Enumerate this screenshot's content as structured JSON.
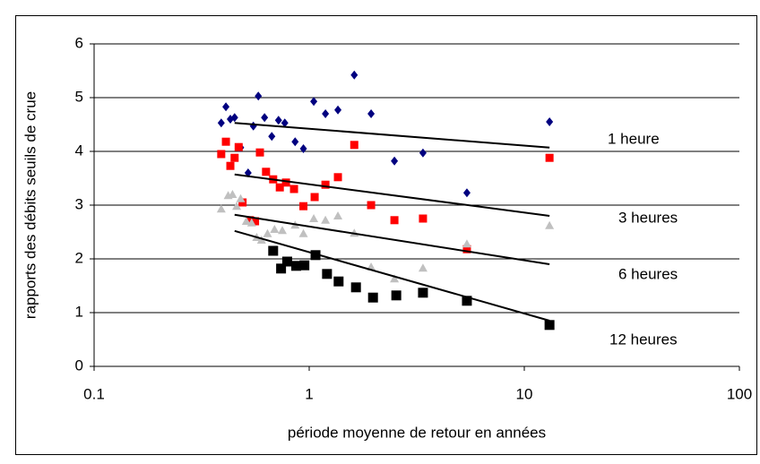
{
  "chart_data": {
    "type": "scatter",
    "x_label": "période moyenne de retour en années",
    "y_label": "rapports des débits seuils de crue",
    "xlim": [
      0.1,
      100
    ],
    "xticks": [
      0.1,
      1,
      10,
      100
    ],
    "xlog": true,
    "ylim": [
      0,
      6
    ],
    "yticks": [
      0,
      1,
      2,
      3,
      4,
      5,
      6
    ],
    "grid": true,
    "series": [
      {
        "marker": "diamond",
        "color": "#000080",
        "x": [
          0.39,
          0.41,
          0.43,
          0.45,
          0.47,
          0.48,
          0.52,
          0.55,
          0.58,
          0.62,
          0.67,
          0.72,
          0.77,
          0.86,
          0.94,
          1.05,
          1.19,
          1.36,
          1.62,
          1.94,
          2.49,
          3.38,
          5.41,
          13.1
        ],
        "values": [
          4.53,
          4.83,
          4.6,
          4.63,
          4.07,
          4.07,
          3.6,
          4.47,
          5.03,
          4.63,
          4.28,
          4.58,
          4.53,
          4.18,
          4.05,
          4.93,
          4.7,
          4.77,
          5.42,
          4.7,
          3.82,
          3.97,
          3.23,
          4.55
        ]
      },
      {
        "marker": "square",
        "color": "#ff0000",
        "x": [
          0.39,
          0.41,
          0.43,
          0.45,
          0.47,
          0.49,
          0.53,
          0.56,
          0.59,
          0.63,
          0.68,
          0.73,
          0.78,
          0.85,
          0.94,
          1.06,
          1.19,
          1.36,
          1.62,
          1.94,
          2.49,
          3.38,
          5.41,
          13.1
        ],
        "values": [
          3.95,
          4.18,
          3.73,
          3.88,
          4.08,
          3.05,
          2.72,
          2.7,
          3.98,
          3.62,
          3.48,
          3.33,
          3.42,
          3.3,
          2.98,
          3.15,
          3.38,
          3.52,
          4.12,
          3.0,
          2.72,
          2.75,
          2.18,
          3.88
        ]
      },
      {
        "marker": "triangle",
        "color": "#c0c0c0",
        "x": [
          0.39,
          0.42,
          0.44,
          0.46,
          0.48,
          0.51,
          0.54,
          0.57,
          0.6,
          0.64,
          0.69,
          0.75,
          0.86,
          0.94,
          1.05,
          1.19,
          1.36,
          1.62,
          1.94,
          2.49,
          3.38,
          5.41,
          13.1
        ],
        "values": [
          2.93,
          3.18,
          3.2,
          2.98,
          3.12,
          2.7,
          2.67,
          2.4,
          2.35,
          2.47,
          2.55,
          2.53,
          2.63,
          2.47,
          2.75,
          2.72,
          2.8,
          2.48,
          1.85,
          1.63,
          1.83,
          2.28,
          2.62
        ]
      },
      {
        "marker": "square-large",
        "color": "#000000",
        "x": [
          0.68,
          0.74,
          0.79,
          0.87,
          0.95,
          1.07,
          1.21,
          1.37,
          1.65,
          1.98,
          2.54,
          3.38,
          5.41,
          13.1
        ],
        "values": [
          2.15,
          1.82,
          1.95,
          1.87,
          1.88,
          2.07,
          1.72,
          1.58,
          1.47,
          1.28,
          1.32,
          1.37,
          1.22,
          0.77
        ]
      }
    ],
    "trendlines": [
      {
        "label": "1 heure",
        "x": [
          0.45,
          13.1
        ],
        "values": [
          4.53,
          4.07
        ]
      },
      {
        "label": "3 heures",
        "x": [
          0.45,
          13.1
        ],
        "values": [
          3.57,
          2.8
        ]
      },
      {
        "label": "6 heures",
        "x": [
          0.45,
          13.1
        ],
        "values": [
          2.82,
          1.9
        ]
      },
      {
        "label": "12 heures",
        "x": [
          0.45,
          13.1
        ],
        "values": [
          2.52,
          0.85
        ]
      }
    ]
  }
}
